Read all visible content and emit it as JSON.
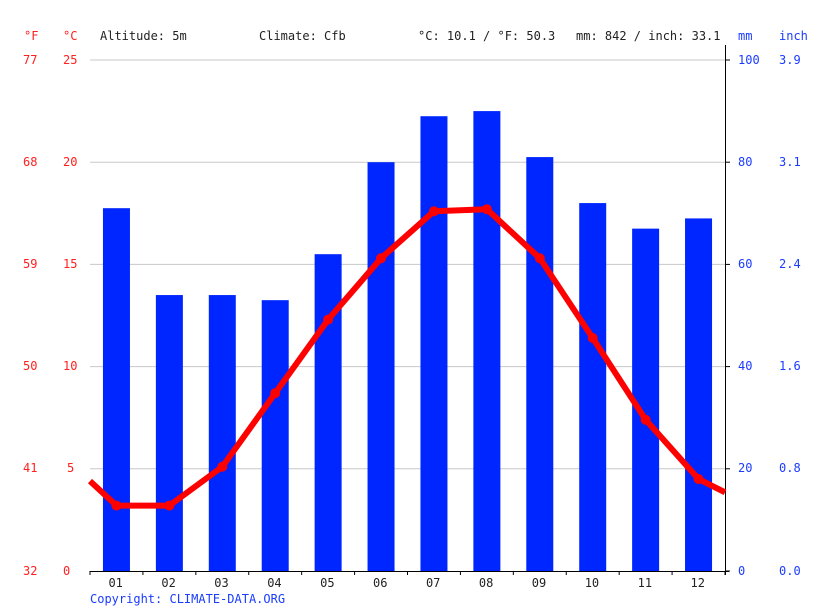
{
  "header": {
    "f_unit": "°F",
    "c_unit": "°C",
    "altitude": "Altitude: 5m",
    "climate": "Climate: Cfb",
    "avg_temp": "°C: 10.1 / °F: 50.3",
    "total_precip": "mm: 842 / inch: 33.1",
    "mm_unit": "mm",
    "inch_unit": "inch"
  },
  "axes": {
    "fahrenheit_ticks": [
      "77",
      "68",
      "59",
      "50",
      "41",
      "32"
    ],
    "celsius_ticks": [
      "25",
      "20",
      "15",
      "10",
      "5",
      "0"
    ],
    "mm_ticks": [
      "100",
      "80",
      "60",
      "40",
      "20",
      "0"
    ],
    "inch_ticks": [
      "3.9",
      "3.1",
      "2.4",
      "1.6",
      "0.8",
      "0.0"
    ],
    "months": [
      "01",
      "02",
      "03",
      "04",
      "05",
      "06",
      "07",
      "08",
      "09",
      "10",
      "11",
      "12"
    ]
  },
  "footer": {
    "copyright": "Copyright: CLIMATE-DATA.ORG"
  },
  "colors": {
    "precip_bar": "#0026ff",
    "temp_line": "#ff0000",
    "grid": "#c8c8c8",
    "temp_axis": "#ff2020",
    "precip_axis": "#1a3cff"
  },
  "chart_data": {
    "type": "bar+line",
    "title": "",
    "categories": [
      "01",
      "02",
      "03",
      "04",
      "05",
      "06",
      "07",
      "08",
      "09",
      "10",
      "11",
      "12"
    ],
    "series": [
      {
        "name": "Precipitation (mm)",
        "type": "bar",
        "axis": "right",
        "values": [
          71,
          54,
          54,
          53,
          62,
          80,
          89,
          90,
          81,
          72,
          67,
          69
        ]
      },
      {
        "name": "Temperature (°C)",
        "type": "line",
        "axis": "left",
        "values": [
          3.2,
          3.2,
          5.1,
          8.7,
          12.3,
          15.3,
          17.6,
          17.7,
          15.3,
          11.4,
          7.4,
          4.5
        ]
      }
    ],
    "left_axis": {
      "label": "°C",
      "range": [
        0,
        25
      ],
      "ticks": [
        0,
        5,
        10,
        15,
        20,
        25
      ],
      "secondary_label": "°F",
      "secondary_ticks": [
        32,
        41,
        50,
        59,
        68,
        77
      ]
    },
    "right_axis": {
      "label": "mm",
      "range": [
        0,
        100
      ],
      "ticks": [
        0,
        20,
        40,
        60,
        80,
        100
      ],
      "secondary_label": "inch",
      "secondary_ticks": [
        0.0,
        0.8,
        1.6,
        2.4,
        3.1,
        3.9
      ]
    },
    "annotations": [
      "Altitude: 5m",
      "Climate: Cfb",
      "°C: 10.1 / °F: 50.3",
      "mm: 842 / inch: 33.1"
    ],
    "grid": true,
    "legend": "none"
  }
}
